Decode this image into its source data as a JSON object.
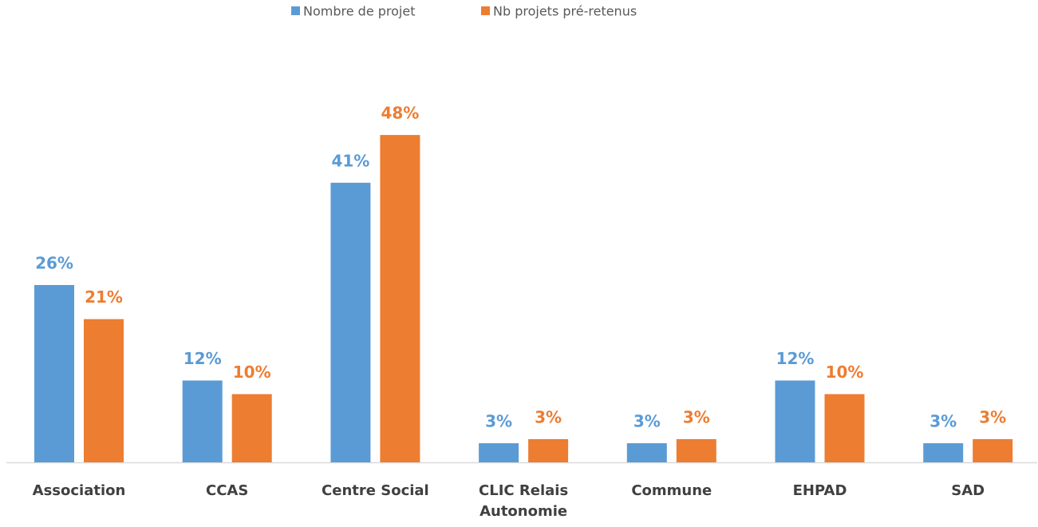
{
  "chart_data": {
    "type": "bar",
    "categories": [
      "Association",
      "CCAS",
      "Centre Social",
      "CLIC Relais Autonomie",
      "Commune",
      "EHPAD",
      "SAD"
    ],
    "series": [
      {
        "name": "Nombre de projet",
        "color": "#5b9bd5",
        "values": [
          26,
          12,
          41,
          2.8,
          2.8,
          12,
          2.8
        ],
        "value_labels": [
          "26%",
          "12%",
          "41%",
          "3%",
          "3%",
          "12%",
          "3%"
        ]
      },
      {
        "name": "Nb projets pré-retenus",
        "color": "#ed7d31",
        "values": [
          21,
          10,
          48,
          3.4,
          3.4,
          10,
          3.4
        ],
        "value_labels": [
          "21%",
          "10%",
          "48%",
          "3%",
          "3%",
          "10%",
          "3%"
        ]
      }
    ],
    "legend": "top"
  }
}
